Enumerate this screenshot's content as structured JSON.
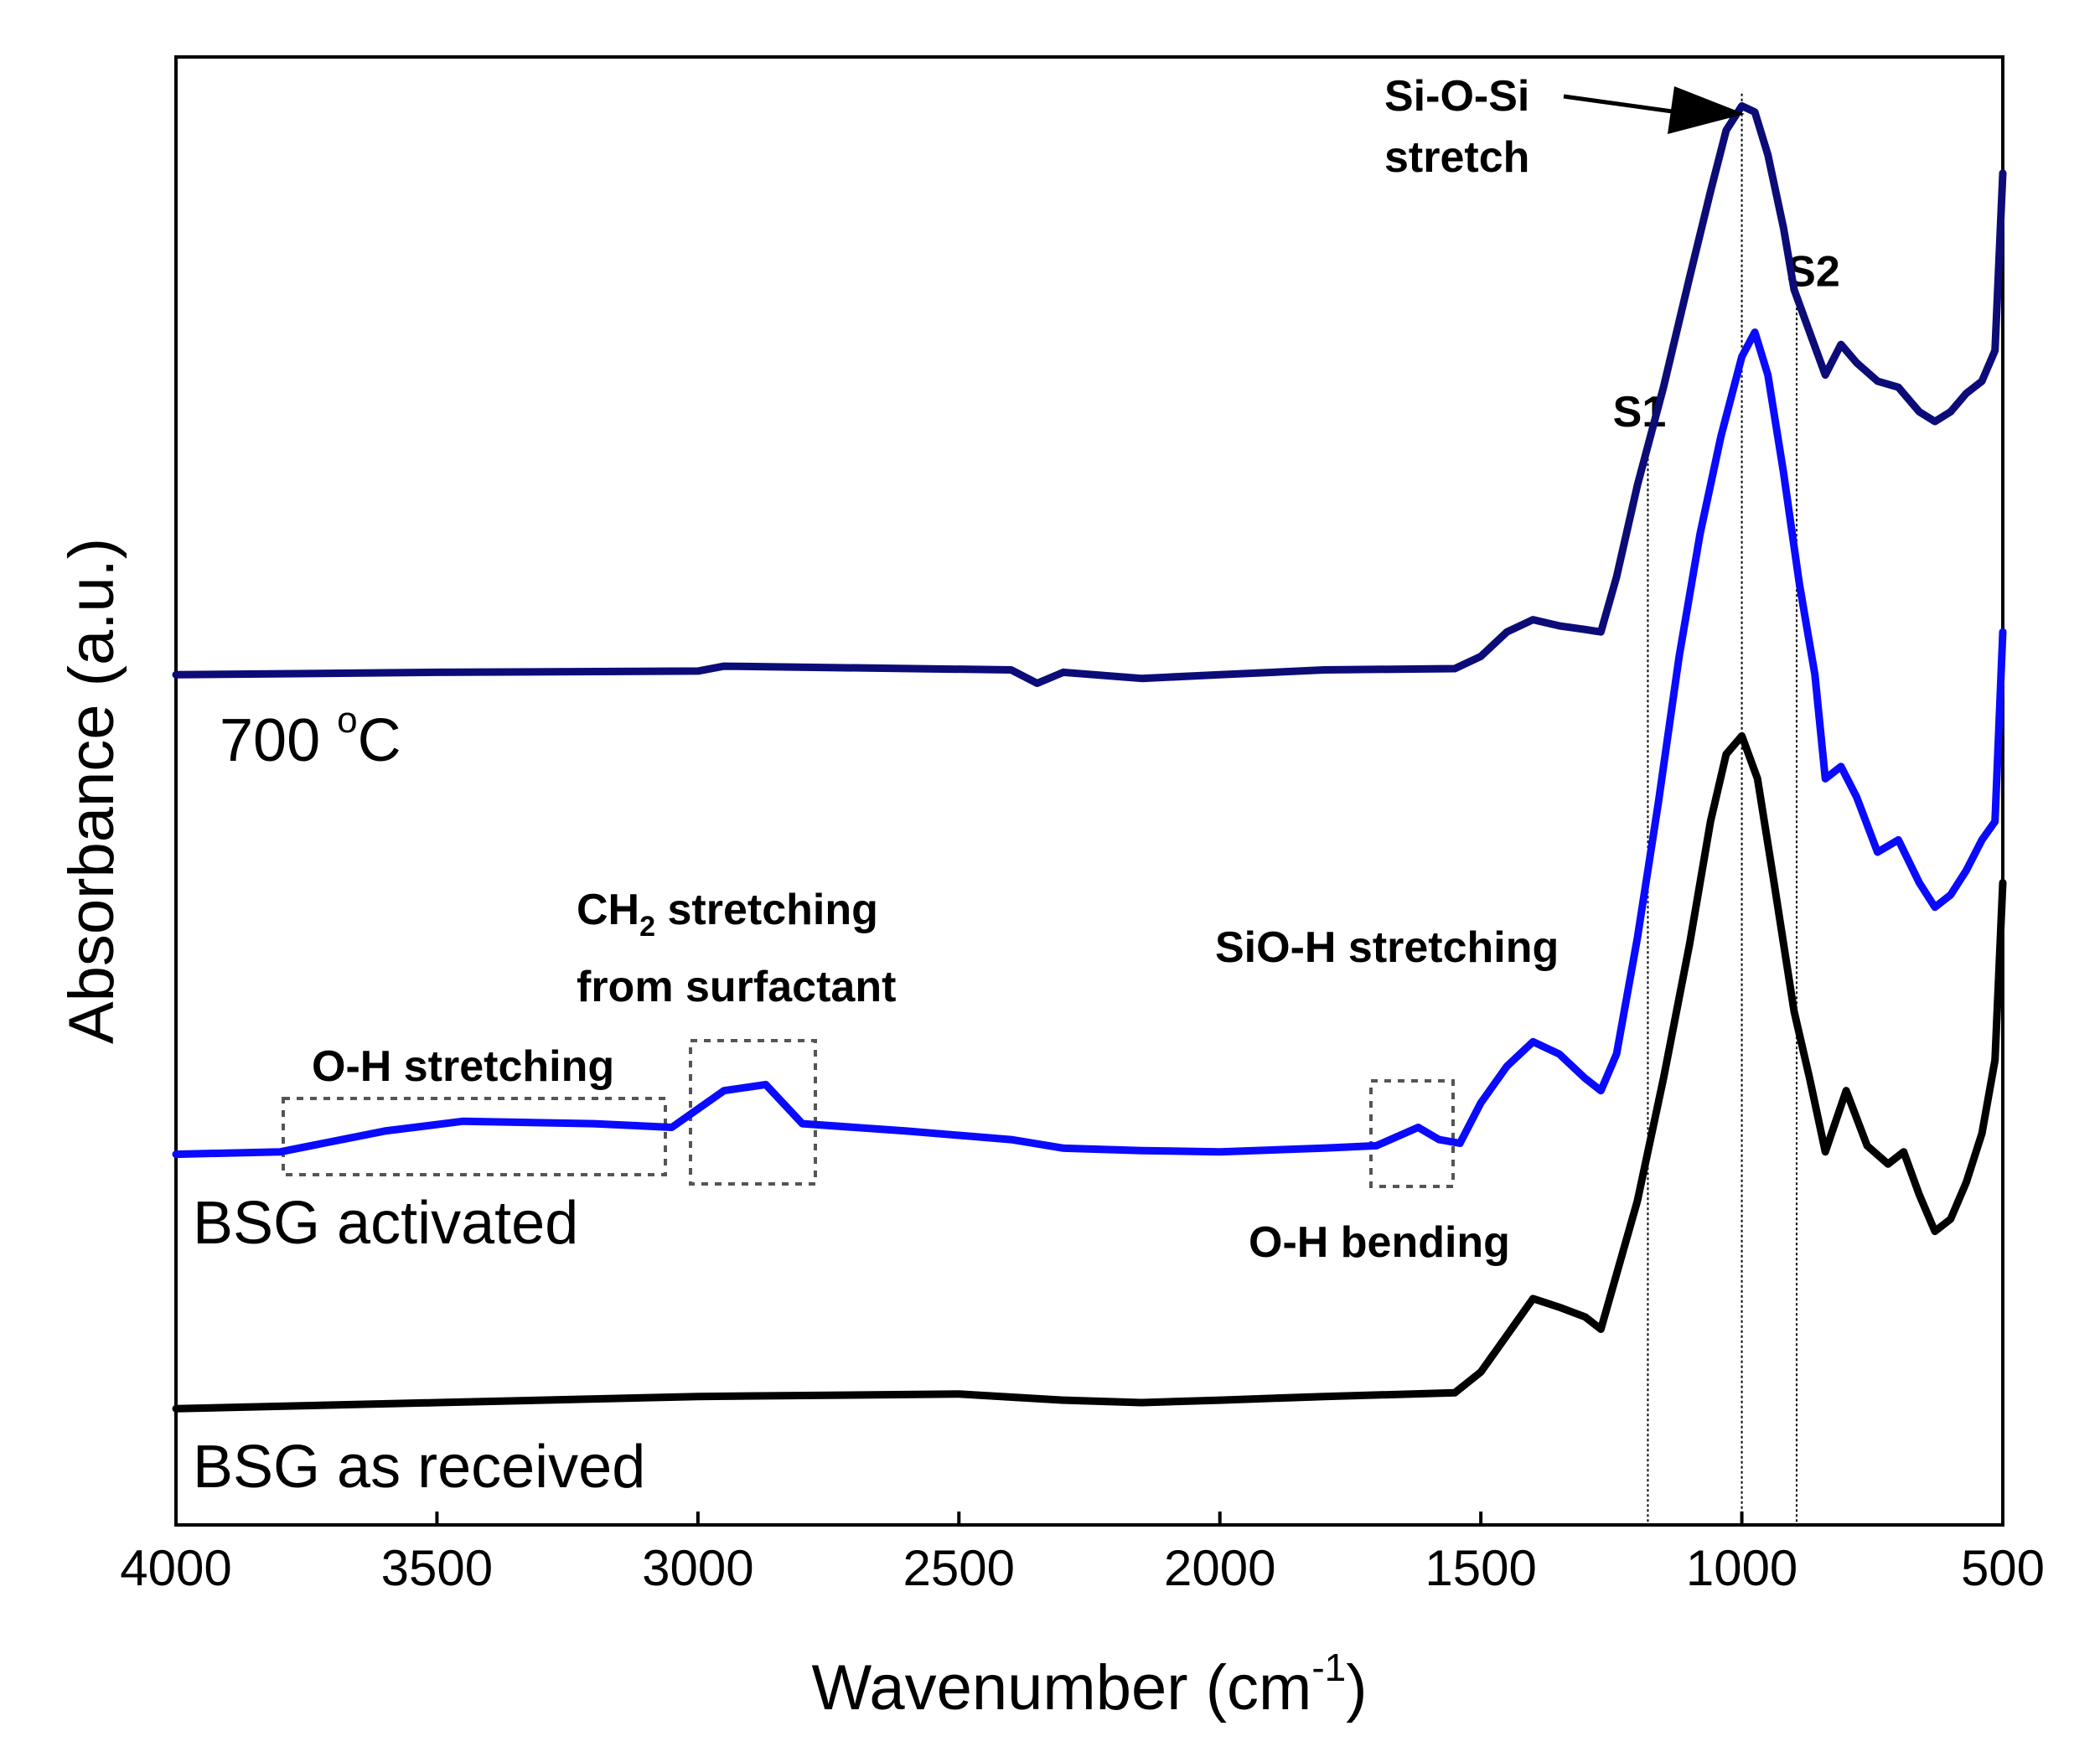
{
  "chart_data": {
    "type": "line",
    "xlabel": "Wavenumber (cm",
    "xlabel_sup": "-1",
    "xlabel_end": ")",
    "ylabel": "Absorbance (a.u.)",
    "xlim": [
      4000,
      500
    ],
    "x_direction": "reversed",
    "ylim": [
      0,
      12
    ],
    "yticks_shown": false,
    "xticks": [
      "4000",
      "3500",
      "3000",
      "2500",
      "2000",
      "1500",
      "1000",
      "500"
    ],
    "series": [
      {
        "name": "BSG as received",
        "label_text": "BSG as received",
        "color": "#000000",
        "points": [
          [
            4000,
            0.95
          ],
          [
            3500,
            1.0
          ],
          [
            3000,
            1.05
          ],
          [
            2500,
            1.07
          ],
          [
            2300,
            1.02
          ],
          [
            2150,
            1.0
          ],
          [
            2000,
            1.02
          ],
          [
            1800,
            1.05
          ],
          [
            1550,
            1.08
          ],
          [
            1500,
            1.25
          ],
          [
            1450,
            1.55
          ],
          [
            1400,
            1.85
          ],
          [
            1350,
            1.78
          ],
          [
            1300,
            1.7
          ],
          [
            1270,
            1.6
          ],
          [
            1240,
            2.05
          ],
          [
            1200,
            2.65
          ],
          [
            1150,
            3.65
          ],
          [
            1100,
            4.75
          ],
          [
            1060,
            5.75
          ],
          [
            1030,
            6.3
          ],
          [
            1000,
            6.45
          ],
          [
            970,
            6.1
          ],
          [
            940,
            5.3
          ],
          [
            900,
            4.2
          ],
          [
            870,
            3.65
          ],
          [
            840,
            3.05
          ],
          [
            800,
            3.55
          ],
          [
            760,
            3.1
          ],
          [
            720,
            2.95
          ],
          [
            690,
            3.05
          ],
          [
            660,
            2.7
          ],
          [
            630,
            2.4
          ],
          [
            600,
            2.5
          ],
          [
            570,
            2.8
          ],
          [
            540,
            3.2
          ],
          [
            515,
            3.8
          ],
          [
            500,
            5.25
          ]
        ]
      },
      {
        "name": "BSG activated",
        "label_text": "BSG activated",
        "color": "#0a0aff",
        "points": [
          [
            4000,
            3.03
          ],
          [
            3800,
            3.05
          ],
          [
            3600,
            3.22
          ],
          [
            3450,
            3.3
          ],
          [
            3200,
            3.28
          ],
          [
            3050,
            3.25
          ],
          [
            2950,
            3.55
          ],
          [
            2870,
            3.6
          ],
          [
            2800,
            3.28
          ],
          [
            2600,
            3.22
          ],
          [
            2400,
            3.15
          ],
          [
            2300,
            3.08
          ],
          [
            2150,
            3.06
          ],
          [
            2000,
            3.05
          ],
          [
            1800,
            3.08
          ],
          [
            1700,
            3.1
          ],
          [
            1620,
            3.25
          ],
          [
            1580,
            3.15
          ],
          [
            1540,
            3.12
          ],
          [
            1500,
            3.45
          ],
          [
            1450,
            3.75
          ],
          [
            1400,
            3.95
          ],
          [
            1350,
            3.85
          ],
          [
            1300,
            3.65
          ],
          [
            1270,
            3.55
          ],
          [
            1240,
            3.85
          ],
          [
            1200,
            4.8
          ],
          [
            1160,
            5.9
          ],
          [
            1120,
            7.1
          ],
          [
            1080,
            8.1
          ],
          [
            1040,
            8.9
          ],
          [
            1000,
            9.55
          ],
          [
            975,
            9.75
          ],
          [
            950,
            9.4
          ],
          [
            920,
            8.6
          ],
          [
            890,
            7.7
          ],
          [
            860,
            6.95
          ],
          [
            840,
            6.1
          ],
          [
            810,
            6.2
          ],
          [
            780,
            5.95
          ],
          [
            740,
            5.5
          ],
          [
            700,
            5.6
          ],
          [
            660,
            5.25
          ],
          [
            630,
            5.05
          ],
          [
            600,
            5.15
          ],
          [
            570,
            5.35
          ],
          [
            540,
            5.6
          ],
          [
            515,
            5.75
          ],
          [
            500,
            7.3
          ]
        ]
      },
      {
        "name": "700 °C",
        "label_main": "700 ",
        "label_sup": "o",
        "label_end": "C",
        "color": "#0c0c78",
        "points": [
          [
            4000,
            6.95
          ],
          [
            3500,
            6.97
          ],
          [
            3000,
            6.98
          ],
          [
            2950,
            7.02
          ],
          [
            2400,
            6.99
          ],
          [
            2350,
            6.88
          ],
          [
            2300,
            6.97
          ],
          [
            2150,
            6.92
          ],
          [
            2000,
            6.95
          ],
          [
            1800,
            6.99
          ],
          [
            1550,
            7.0
          ],
          [
            1500,
            7.1
          ],
          [
            1450,
            7.3
          ],
          [
            1400,
            7.4
          ],
          [
            1350,
            7.35
          ],
          [
            1300,
            7.32
          ],
          [
            1270,
            7.3
          ],
          [
            1240,
            7.75
          ],
          [
            1200,
            8.5
          ],
          [
            1150,
            9.3
          ],
          [
            1100,
            10.2
          ],
          [
            1060,
            10.9
          ],
          [
            1030,
            11.4
          ],
          [
            1000,
            11.6
          ],
          [
            975,
            11.55
          ],
          [
            950,
            11.2
          ],
          [
            920,
            10.6
          ],
          [
            900,
            10.1
          ],
          [
            870,
            9.75
          ],
          [
            840,
            9.4
          ],
          [
            810,
            9.65
          ],
          [
            780,
            9.5
          ],
          [
            740,
            9.35
          ],
          [
            700,
            9.3
          ],
          [
            660,
            9.1
          ],
          [
            630,
            9.02
          ],
          [
            600,
            9.1
          ],
          [
            570,
            9.25
          ],
          [
            540,
            9.35
          ],
          [
            515,
            9.6
          ],
          [
            500,
            11.05
          ]
        ]
      }
    ],
    "reference_lines": [
      {
        "label": "S1",
        "x": 1180
      },
      {
        "label": "S2",
        "x": 895
      },
      {
        "label": "",
        "x": 1000
      }
    ],
    "annotations": {
      "si_o_si_line1": "Si-O-Si",
      "si_o_si_line2": "stretch",
      "ch2_main": "CH",
      "ch2_sub": "2",
      "ch2_rest": " stretching",
      "ch2_line2": "from surfactant",
      "oh_stretching": "O-H stretching",
      "sio_h_stretching": "SiO-H stretching",
      "oh_bending": "O-H bending"
    }
  }
}
